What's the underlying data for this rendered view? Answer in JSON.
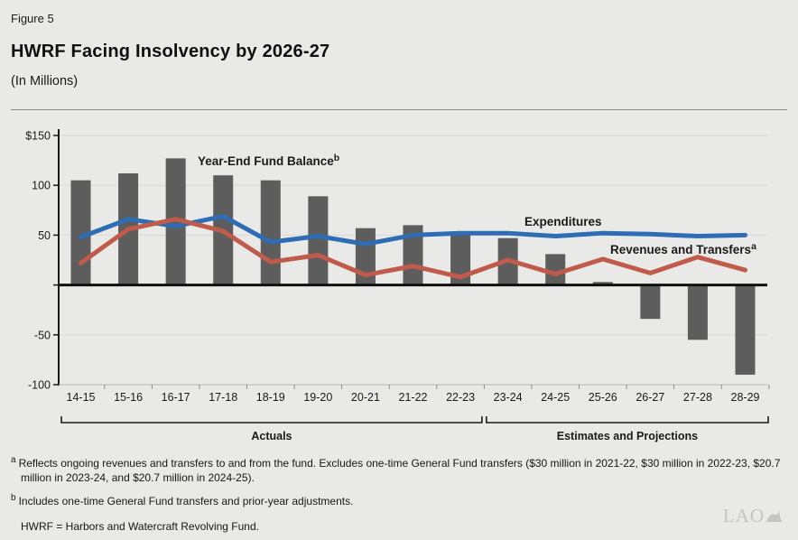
{
  "figure_label": "Figure 5",
  "title": "HWRF Facing Insolvency by 2026-27",
  "subtitle": "(In Millions)",
  "footnotes": {
    "a_marker": "a",
    "a_text": "Reflects ongoing revenues and transfers to and from the fund. Excludes one-time General Fund transfers ($30 million in 2021-22, $30 million in 2022-23, $20.7 million in 2023-24, and $20.7 million in 2024-25).",
    "b_marker": "b",
    "b_text": "Includes one-time General Fund transfers and prior-year adjustments.",
    "definition": "HWRF = Harbors and Watercraft Revolving Fund."
  },
  "logo": {
    "text": "LAO"
  },
  "colors": {
    "background": "#e9e9e7",
    "bar": "#5d5d5d",
    "expenditures_blue": "#2e6cb3",
    "revenues_red": "#c05b4b",
    "balance_label_navy": "#4c4c62",
    "gridline": "#d7d7d4"
  },
  "chart_data": {
    "type": "bar+line",
    "title": "HWRF Facing Insolvency by 2026-27",
    "units": "In Millions",
    "categories": [
      "14-15",
      "15-16",
      "16-17",
      "17-18",
      "18-19",
      "19-20",
      "20-21",
      "21-22",
      "22-23",
      "23-24",
      "24-25",
      "25-26",
      "26-27",
      "27-28",
      "28-29"
    ],
    "series": [
      {
        "name": "Year-End Fund Balance",
        "superscript": "b",
        "type": "bar",
        "color": "#5d5d5d",
        "label_color": "#4c4c62",
        "values": [
          105,
          112,
          127,
          110,
          105,
          89,
          57,
          60,
          50,
          47,
          31,
          3,
          -34,
          -55,
          -90
        ]
      },
      {
        "name": "Expenditures",
        "type": "line",
        "color": "#2e6cb3",
        "label_color": "#2e6cb3",
        "values": [
          48,
          66,
          59,
          69,
          43,
          49,
          41,
          50,
          52,
          52,
          49,
          52,
          51,
          49,
          50
        ]
      },
      {
        "name": "Revenues and Transfers",
        "superscript": "a",
        "type": "line",
        "color": "#c05b4b",
        "label_color": "#bd5245",
        "values": [
          22,
          56,
          66,
          54,
          23,
          30,
          10,
          19,
          8,
          25,
          11,
          26,
          12,
          28,
          15
        ]
      }
    ],
    "ylim": [
      -100,
      150
    ],
    "yticks": [
      {
        "value": 150,
        "label": "$150"
      },
      {
        "value": 100,
        "label": "100"
      },
      {
        "value": 50,
        "label": "50"
      },
      {
        "value": 0,
        "label": ""
      },
      {
        "value": -50,
        "label": "-50"
      },
      {
        "value": -100,
        "label": "-100"
      }
    ],
    "x_groups": [
      {
        "label": "Actuals",
        "from": 0,
        "to": 8
      },
      {
        "label": "Estimates and Projections",
        "from": 9,
        "to": 14
      }
    ],
    "grid": true,
    "legend_position": "inline-annotations"
  }
}
